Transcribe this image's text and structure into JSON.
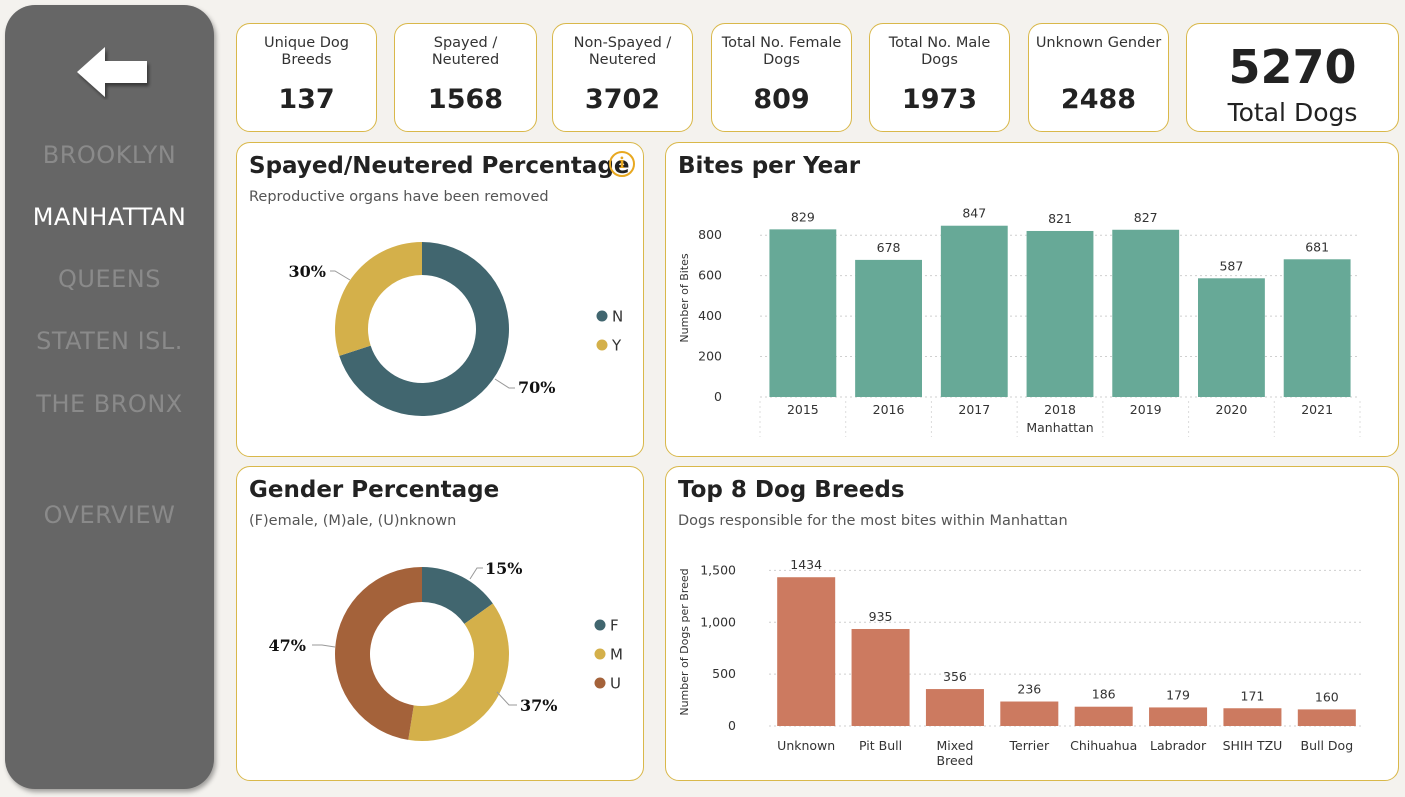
{
  "nav": {
    "items": [
      {
        "label": "BROOKLYN",
        "active": false
      },
      {
        "label": "MANHATTAN",
        "active": true
      },
      {
        "label": "QUEENS",
        "active": false
      },
      {
        "label": "STATEN ISL.",
        "active": false
      },
      {
        "label": "THE BRONX",
        "active": false
      },
      {
        "label": "OVERVIEW",
        "active": false
      }
    ],
    "back_icon": "arrow-left-icon"
  },
  "kpis": [
    {
      "label": "Unique Dog Breeds",
      "value": "137"
    },
    {
      "label": "Spayed / Neutered",
      "value": "1568"
    },
    {
      "label": "Non-Spayed / Neutered",
      "value": "3702"
    },
    {
      "label": "Total No. Female Dogs",
      "value": "809"
    },
    {
      "label": "Total No. Male Dogs",
      "value": "1973"
    },
    {
      "label": "Unknown Gender",
      "value": "2488"
    }
  ],
  "total": {
    "value": "5270",
    "label": "Total Dogs"
  },
  "spayed_panel": {
    "title": "Spayed/Neutered Percentage",
    "subtitle": "Reproductive organs have been removed",
    "info_icon": "info-icon"
  },
  "gender_panel": {
    "title": "Gender Percentage",
    "subtitle": "(F)emale, (M)ale, (U)nknown"
  },
  "bites_panel": {
    "title": "Bites per Year"
  },
  "breeds_panel": {
    "title": "Top 8 Dog Breeds",
    "subtitle": "Dogs responsible for the most bites within Manhattan"
  },
  "colors": {
    "teal": "#41666f",
    "gold": "#d4b04a",
    "rust": "#a4623a",
    "green_bar": "#67a997",
    "salmon_bar": "#cc7a60",
    "accent_border": "#d9b84a"
  },
  "chart_data": [
    {
      "type": "pie",
      "variant": "donut",
      "categories": [
        "N",
        "Y"
      ],
      "values": [
        70,
        30
      ],
      "labels": [
        "70%",
        "30%"
      ],
      "colors": [
        "#41666f",
        "#d4b04a"
      ],
      "legend": "right"
    },
    {
      "type": "pie",
      "variant": "donut",
      "categories": [
        "F",
        "M",
        "U"
      ],
      "values": [
        15,
        37,
        47
      ],
      "labels": [
        "15%",
        "37%",
        "47%"
      ],
      "colors": [
        "#41666f",
        "#d4b04a",
        "#a4623a"
      ],
      "legend": "right"
    },
    {
      "type": "bar",
      "categories": [
        "2015",
        "2016",
        "2017",
        "2018",
        "2019",
        "2020",
        "2021"
      ],
      "values": [
        829,
        678,
        847,
        821,
        827,
        587,
        681
      ],
      "xlabel": "Manhattan",
      "ylabel": "Number of Bites",
      "yticks": [
        "0",
        "200",
        "400",
        "600",
        "800"
      ],
      "ylim": [
        0,
        900
      ],
      "grid": true,
      "color": "#67a997"
    },
    {
      "type": "bar",
      "categories": [
        "Unknown",
        "Pit Bull",
        "Mixed Breed",
        "Terrier",
        "Chihuahua",
        "Labrador",
        "SHIH TZU",
        "Bull Dog"
      ],
      "values": [
        1434,
        935,
        356,
        236,
        186,
        179,
        171,
        160
      ],
      "ylabel": "Number of Dogs per Breed",
      "yticks": [
        "0",
        "500",
        "1,000",
        "1,500"
      ],
      "ylim": [
        0,
        1600
      ],
      "grid": true,
      "color": "#cc7a60"
    }
  ]
}
